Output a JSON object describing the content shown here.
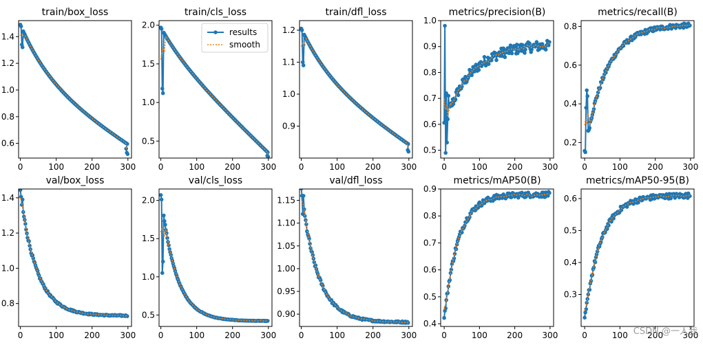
{
  "legend": {
    "results_label": "results",
    "smooth_label": "smooth"
  },
  "colors": {
    "results": "#1f77b4",
    "smooth": "#ff7f0e"
  },
  "watermark": "CSDN @一人我",
  "chart_data": [
    {
      "type": "line",
      "title": "train/box_loss",
      "xlim": [
        -5,
        310
      ],
      "ylim": [
        0.49,
        1.52
      ],
      "xticks": [
        0,
        100,
        200,
        300
      ],
      "yticks": [
        0.6,
        0.8,
        1.0,
        1.2,
        1.4
      ],
      "yfmt": 1,
      "curve": {
        "start": 1.49,
        "end": 0.58,
        "k": 3.5,
        "blend": 0.55,
        "jump": [
          [
            2,
            1.34
          ],
          [
            3,
            1.32
          ]
        ],
        "tail": [
          [
            295,
            0.56
          ],
          [
            297,
            0.53
          ],
          [
            299,
            0.52
          ]
        ]
      }
    },
    {
      "type": "line",
      "title": "train/cls_loss",
      "xlim": [
        -5,
        310
      ],
      "ylim": [
        0.28,
        2.06
      ],
      "xticks": [
        0,
        100,
        200,
        300
      ],
      "yticks": [
        0.5,
        1.0,
        1.5,
        2.0
      ],
      "yfmt": 1,
      "legend": "top-right",
      "curve": {
        "start": 1.97,
        "end": 0.34,
        "k": 4.0,
        "blend": 0.82,
        "jump": [
          [
            2,
            1.18
          ],
          [
            3,
            1.12
          ]
        ],
        "tail": [
          [
            297,
            0.31
          ],
          [
            299,
            0.3
          ]
        ]
      }
    },
    {
      "type": "line",
      "title": "train/dfl_loss",
      "xlim": [
        -5,
        310
      ],
      "ylim": [
        0.8,
        1.23
      ],
      "xticks": [
        0,
        100,
        200,
        300
      ],
      "yticks": [
        0.9,
        1.0,
        1.1,
        1.2
      ],
      "yfmt": 1,
      "curve": {
        "start": 1.205,
        "end": 0.838,
        "k": 3.5,
        "blend": 0.6,
        "jump": [
          [
            2,
            1.1
          ],
          [
            3,
            1.09
          ]
        ],
        "tail": [
          [
            297,
            0.825
          ],
          [
            299,
            0.82
          ]
        ]
      }
    },
    {
      "type": "line",
      "title": "metrics/precision(B)",
      "xlim": [
        -10,
        310
      ],
      "ylim": [
        0.47,
        1.0
      ],
      "xticks": [
        0,
        100,
        200,
        300
      ],
      "yticks": [
        0.5,
        0.6,
        0.7,
        0.8,
        0.9,
        1.0
      ],
      "yfmt": 1,
      "curve": {
        "grow": true,
        "start": 0.6,
        "end": 0.91,
        "k": 4.0,
        "blend": 0.3,
        "noise": 0.02,
        "jump": [
          [
            1,
            0.98
          ],
          [
            2,
            0.49
          ],
          [
            3,
            0.72
          ],
          [
            4,
            0.53
          ],
          [
            5,
            0.62
          ],
          [
            6,
            0.71
          ]
        ]
      }
    },
    {
      "type": "line",
      "title": "metrics/recall(B)",
      "xlim": [
        -10,
        310
      ],
      "ylim": [
        0.12,
        0.83
      ],
      "xticks": [
        0,
        100,
        200,
        300
      ],
      "yticks": [
        0.2,
        0.4,
        0.6,
        0.8
      ],
      "yfmt": 1,
      "curve": {
        "grow": true,
        "start": 0.15,
        "end": 0.81,
        "k": 5.0,
        "blend": 0.2,
        "noise": 0.012,
        "jump": [
          [
            1,
            0.15
          ],
          [
            2,
            0.38
          ],
          [
            3,
            0.47
          ],
          [
            4,
            0.44
          ]
        ]
      }
    },
    {
      "type": "line",
      "title": "val/box_loss",
      "xlim": [
        -5,
        310
      ],
      "ylim": [
        0.67,
        1.45
      ],
      "xticks": [
        0,
        100,
        200,
        300
      ],
      "yticks": [
        0.8,
        1.0,
        1.2,
        1.4
      ],
      "yfmt": 1,
      "curve": {
        "start": 1.43,
        "end": 0.73,
        "k": 6.5,
        "blend": 0.0,
        "noise": 0.012,
        "jump": [
          [
            2,
            1.36
          ],
          [
            3,
            1.39
          ]
        ]
      }
    },
    {
      "type": "line",
      "title": "val/cls_loss",
      "xlim": [
        -5,
        310
      ],
      "ylim": [
        0.35,
        2.15
      ],
      "xticks": [
        0,
        100,
        200,
        300
      ],
      "yticks": [
        0.5,
        1.0,
        1.5,
        2.0
      ],
      "yfmt": 1,
      "curve": {
        "start": 2.08,
        "end": 0.42,
        "k": 7.0,
        "blend": 0.0,
        "noise": 0.01,
        "jump": [
          [
            2,
            1.05
          ],
          [
            3,
            1.2
          ]
        ]
      }
    },
    {
      "type": "line",
      "title": "val/dfl_loss",
      "xlim": [
        -5,
        310
      ],
      "ylim": [
        0.873,
        1.175
      ],
      "xticks": [
        0,
        100,
        200,
        300
      ],
      "yticks": [
        0.9,
        0.95,
        1.0,
        1.05,
        1.1,
        1.15
      ],
      "yfmt": 2,
      "curve": {
        "start": 1.17,
        "end": 0.882,
        "k": 6.5,
        "blend": 0.0,
        "noise": 0.006,
        "jump": [
          [
            2,
            1.12
          ],
          [
            3,
            1.16
          ]
        ]
      }
    },
    {
      "type": "line",
      "title": "metrics/mAP50(B)",
      "xlim": [
        -10,
        310
      ],
      "ylim": [
        0.39,
        0.9
      ],
      "xticks": [
        0,
        100,
        200,
        300
      ],
      "yticks": [
        0.4,
        0.5,
        0.6,
        0.7,
        0.8,
        0.9
      ],
      "yfmt": 1,
      "curve": {
        "grow": true,
        "start": 0.42,
        "end": 0.88,
        "k": 7.5,
        "blend": 0.0,
        "noise": 0.01
      }
    },
    {
      "type": "line",
      "title": "metrics/mAP50-95(B)",
      "xlim": [
        -10,
        310
      ],
      "ylim": [
        0.2,
        0.63
      ],
      "xticks": [
        0,
        100,
        200,
        300
      ],
      "yticks": [
        0.3,
        0.4,
        0.5,
        0.6
      ],
      "yfmt": 1,
      "curve": {
        "grow": true,
        "start": 0.22,
        "end": 0.61,
        "k": 6.5,
        "blend": 0.0,
        "noise": 0.008
      }
    }
  ]
}
